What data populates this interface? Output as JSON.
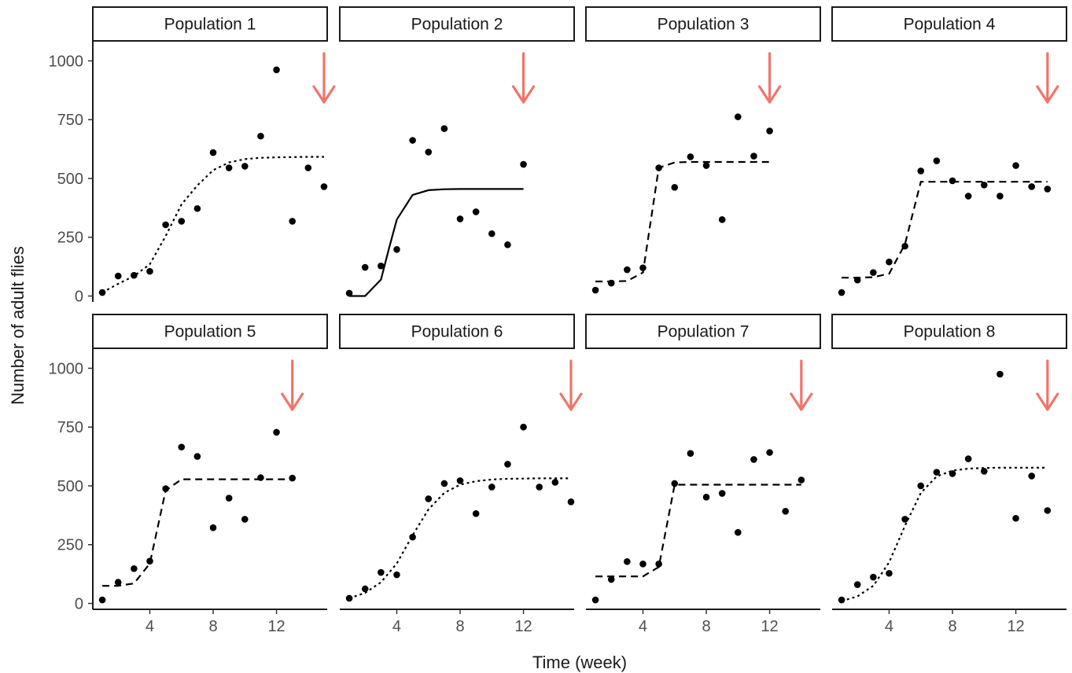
{
  "chart_data": {
    "type": "scatter",
    "xlabel": "Time (week)",
    "ylabel": "Number of adult flies",
    "xticks": [
      4,
      8,
      12
    ],
    "xtick_labels": [
      "4",
      "8",
      "12"
    ],
    "yticks": [
      0,
      250,
      500,
      750,
      1000
    ],
    "ytick_labels": [
      "0",
      "250",
      "500",
      "750",
      "1000"
    ],
    "xlim": [
      0.4,
      15.2
    ],
    "ylim": [
      -25,
      1085
    ],
    "grid": false,
    "colors": {
      "points": "#000000",
      "fit": "#000000",
      "arrow": "#f0746a",
      "strip_border": "#1a1a1a"
    },
    "panels": [
      {
        "title": "Population 1",
        "fit_style": "dotted",
        "arrow_week": 15,
        "points": [
          [
            1,
            15
          ],
          [
            2,
            85
          ],
          [
            3,
            88
          ],
          [
            4,
            105
          ],
          [
            5,
            303
          ],
          [
            6,
            318
          ],
          [
            7,
            372
          ],
          [
            8,
            610
          ],
          [
            9,
            545
          ],
          [
            10,
            552
          ],
          [
            11,
            680
          ],
          [
            12,
            962
          ],
          [
            13,
            318
          ],
          [
            14,
            545
          ],
          [
            15,
            465
          ]
        ],
        "fit": [
          [
            1,
            15
          ],
          [
            2,
            52
          ],
          [
            3,
            85
          ],
          [
            4,
            135
          ],
          [
            5,
            255
          ],
          [
            6,
            390
          ],
          [
            7,
            470
          ],
          [
            8,
            535
          ],
          [
            9,
            568
          ],
          [
            10,
            582
          ],
          [
            11,
            588
          ],
          [
            12,
            590
          ],
          [
            13,
            591
          ],
          [
            14,
            592
          ],
          [
            15,
            592
          ]
        ]
      },
      {
        "title": "Population 2",
        "fit_style": "solid",
        "arrow_week": 12,
        "points": [
          [
            1,
            12
          ],
          [
            2,
            122
          ],
          [
            3,
            128
          ],
          [
            4,
            198
          ],
          [
            5,
            662
          ],
          [
            6,
            612
          ],
          [
            7,
            712
          ],
          [
            8,
            328
          ],
          [
            9,
            358
          ],
          [
            10,
            265
          ],
          [
            11,
            218
          ],
          [
            12,
            560
          ]
        ],
        "fit": [
          [
            1,
            0
          ],
          [
            2,
            0
          ],
          [
            3,
            70
          ],
          [
            3.5,
            200
          ],
          [
            4,
            325
          ],
          [
            5,
            430
          ],
          [
            6,
            450
          ],
          [
            7,
            454
          ],
          [
            8,
            455
          ],
          [
            9,
            455
          ],
          [
            10,
            455
          ],
          [
            11,
            455
          ],
          [
            12,
            455
          ]
        ]
      },
      {
        "title": "Population 3",
        "fit_style": "dashed",
        "arrow_week": 12,
        "points": [
          [
            1,
            25
          ],
          [
            2,
            55
          ],
          [
            3,
            112
          ],
          [
            4,
            120
          ],
          [
            5,
            545
          ],
          [
            6,
            462
          ],
          [
            7,
            592
          ],
          [
            8,
            555
          ],
          [
            9,
            325
          ],
          [
            10,
            762
          ],
          [
            11,
            595
          ],
          [
            12,
            702
          ]
        ],
        "fit": [
          [
            1,
            62
          ],
          [
            2,
            62
          ],
          [
            3,
            64
          ],
          [
            4,
            100
          ],
          [
            5,
            545
          ],
          [
            6,
            568
          ],
          [
            7,
            570
          ],
          [
            8,
            570
          ],
          [
            9,
            570
          ],
          [
            10,
            570
          ],
          [
            11,
            570
          ],
          [
            12,
            570
          ]
        ]
      },
      {
        "title": "Population 4",
        "fit_style": "dashed",
        "arrow_week": 14,
        "points": [
          [
            1,
            15
          ],
          [
            2,
            68
          ],
          [
            3,
            100
          ],
          [
            4,
            145
          ],
          [
            5,
            212
          ],
          [
            6,
            532
          ],
          [
            7,
            575
          ],
          [
            8,
            490
          ],
          [
            9,
            425
          ],
          [
            10,
            472
          ],
          [
            11,
            425
          ],
          [
            12,
            555
          ],
          [
            13,
            465
          ],
          [
            14,
            455
          ]
        ],
        "fit": [
          [
            1,
            78
          ],
          [
            2,
            78
          ],
          [
            3,
            80
          ],
          [
            4,
            95
          ],
          [
            5,
            220
          ],
          [
            6,
            486
          ],
          [
            7,
            486
          ],
          [
            8,
            486
          ],
          [
            9,
            486
          ],
          [
            10,
            486
          ],
          [
            11,
            486
          ],
          [
            12,
            486
          ],
          [
            13,
            486
          ],
          [
            14,
            486
          ]
        ]
      },
      {
        "title": "Population 5",
        "fit_style": "dashed",
        "arrow_week": 13,
        "points": [
          [
            1,
            15
          ],
          [
            2,
            90
          ],
          [
            3,
            148
          ],
          [
            4,
            180
          ],
          [
            5,
            488
          ],
          [
            6,
            665
          ],
          [
            7,
            625
          ],
          [
            8,
            322
          ],
          [
            9,
            448
          ],
          [
            10,
            358
          ],
          [
            11,
            535
          ],
          [
            12,
            728
          ],
          [
            13,
            533
          ]
        ],
        "fit": [
          [
            1,
            75
          ],
          [
            2,
            75
          ],
          [
            3,
            85
          ],
          [
            4,
            170
          ],
          [
            5,
            480
          ],
          [
            6,
            528
          ],
          [
            7,
            528
          ],
          [
            8,
            528
          ],
          [
            9,
            528
          ],
          [
            10,
            528
          ],
          [
            11,
            528
          ],
          [
            12,
            528
          ],
          [
            13,
            528
          ]
        ]
      },
      {
        "title": "Population 6",
        "fit_style": "dotted",
        "arrow_week": 15,
        "points": [
          [
            1,
            22
          ],
          [
            2,
            62
          ],
          [
            3,
            132
          ],
          [
            4,
            122
          ],
          [
            5,
            282
          ],
          [
            6,
            445
          ],
          [
            7,
            510
          ],
          [
            8,
            522
          ],
          [
            9,
            382
          ],
          [
            10,
            495
          ],
          [
            11,
            592
          ],
          [
            12,
            750
          ],
          [
            13,
            495
          ],
          [
            14,
            515
          ],
          [
            15,
            432
          ]
        ],
        "fit": [
          [
            1,
            22
          ],
          [
            2,
            45
          ],
          [
            3,
            90
          ],
          [
            4,
            170
          ],
          [
            5,
            290
          ],
          [
            6,
            400
          ],
          [
            7,
            470
          ],
          [
            8,
            505
          ],
          [
            9,
            520
          ],
          [
            10,
            527
          ],
          [
            11,
            530
          ],
          [
            12,
            531
          ],
          [
            13,
            532
          ],
          [
            14,
            532
          ],
          [
            15,
            532
          ]
        ]
      },
      {
        "title": "Population 7",
        "fit_style": "dashed",
        "arrow_week": 14,
        "points": [
          [
            1,
            15
          ],
          [
            2,
            102
          ],
          [
            3,
            178
          ],
          [
            4,
            168
          ],
          [
            5,
            168
          ],
          [
            6,
            510
          ],
          [
            7,
            638
          ],
          [
            8,
            452
          ],
          [
            9,
            468
          ],
          [
            10,
            302
          ],
          [
            11,
            612
          ],
          [
            12,
            642
          ],
          [
            13,
            392
          ],
          [
            14,
            525
          ]
        ],
        "fit": [
          [
            1,
            115
          ],
          [
            2,
            115
          ],
          [
            3,
            115
          ],
          [
            4,
            115
          ],
          [
            5,
            155
          ],
          [
            6,
            505
          ],
          [
            7,
            505
          ],
          [
            8,
            505
          ],
          [
            9,
            505
          ],
          [
            10,
            505
          ],
          [
            11,
            505
          ],
          [
            12,
            505
          ],
          [
            13,
            505
          ],
          [
            14,
            505
          ]
        ]
      },
      {
        "title": "Population 8",
        "fit_style": "dotted",
        "arrow_week": 14,
        "points": [
          [
            1,
            15
          ],
          [
            2,
            80
          ],
          [
            3,
            112
          ],
          [
            4,
            128
          ],
          [
            5,
            358
          ],
          [
            6,
            500
          ],
          [
            7,
            558
          ],
          [
            8,
            552
          ],
          [
            9,
            615
          ],
          [
            10,
            562
          ],
          [
            11,
            975
          ],
          [
            12,
            362
          ],
          [
            13,
            542
          ],
          [
            14,
            395
          ]
        ],
        "fit": [
          [
            1,
            10
          ],
          [
            2,
            30
          ],
          [
            3,
            75
          ],
          [
            4,
            175
          ],
          [
            5,
            330
          ],
          [
            6,
            470
          ],
          [
            7,
            540
          ],
          [
            8,
            565
          ],
          [
            9,
            573
          ],
          [
            10,
            576
          ],
          [
            11,
            577
          ],
          [
            12,
            577
          ],
          [
            13,
            577
          ],
          [
            14,
            577
          ]
        ]
      }
    ]
  }
}
